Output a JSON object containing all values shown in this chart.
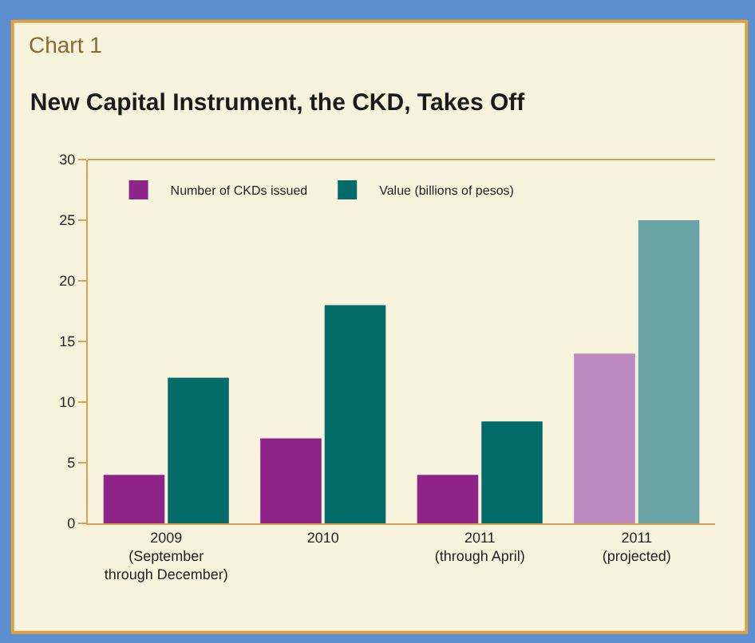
{
  "chart_data": {
    "type": "bar",
    "title": "New Capital Instrument, the CKD, Takes Off",
    "annotations": [
      "Chart 1"
    ],
    "categories": [
      "2009\n(September\nthrough December)",
      "2010",
      "2011\n(through April)",
      "2011\n(projected)"
    ],
    "series": [
      {
        "name": "Number of CKDs issued",
        "colors": [
          "#8e2388",
          "#8e2388",
          "#8e2388",
          "#bb88c0"
        ],
        "values": [
          4,
          7,
          4,
          14
        ]
      },
      {
        "name": "Value (billions of pesos)",
        "colors": [
          "#036b68",
          "#036b68",
          "#036b68",
          "#6aa3a6"
        ],
        "values": [
          12,
          18,
          8.4,
          25
        ]
      }
    ],
    "ylim": [
      0,
      30
    ],
    "yticks": [
      0,
      5,
      10,
      15,
      20,
      25,
      30
    ],
    "grid": false,
    "legend": "top left"
  }
}
